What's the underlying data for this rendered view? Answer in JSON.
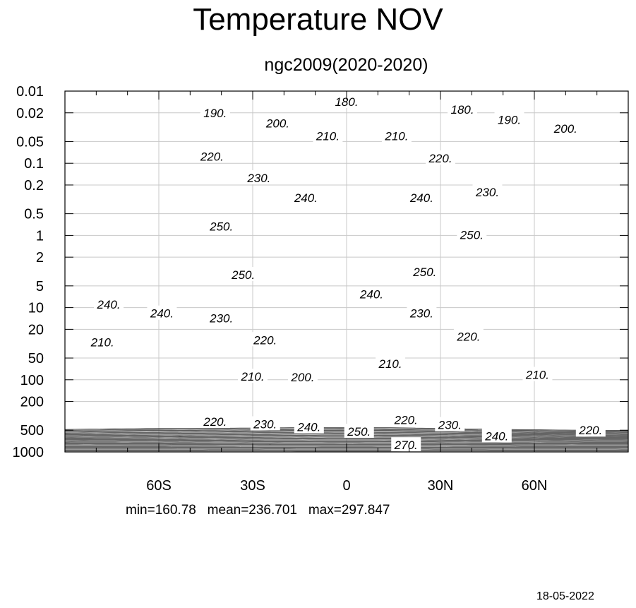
{
  "title": "Temperature NOV",
  "subtitle": "ngc2009(2020-2020)",
  "stats": {
    "min": "min=160.78",
    "mean": "mean=236.701",
    "max": "max=297.847"
  },
  "date": "18-05-2022",
  "chart_data": {
    "type": "contour",
    "title": "Temperature NOV",
    "subtitle": "ngc2009(2020-2020)",
    "x_axis": {
      "range": [
        -90,
        90
      ],
      "ticks": [
        -60,
        -30,
        0,
        30,
        60
      ],
      "tick_labels": [
        "60S",
        "30S",
        "0",
        "30N",
        "60N"
      ]
    },
    "y_axis": {
      "scale": "log",
      "inverted": true,
      "range": [
        0.01,
        1000
      ],
      "ticks": [
        0.01,
        0.02,
        0.05,
        0.1,
        0.2,
        0.5,
        1,
        2,
        5,
        10,
        20,
        50,
        100,
        200,
        500,
        1000
      ],
      "tick_labels": [
        "0.01",
        "0.02",
        "0.05",
        "0.1",
        "0.2",
        "0.5",
        "1",
        "2",
        "5",
        "10",
        "20",
        "50",
        "100",
        "200",
        "500",
        "1000"
      ]
    },
    "grid": true,
    "contour_interval": 5,
    "contour_labels": [
      {
        "text": "180.",
        "lat": 0,
        "p": 0.014
      },
      {
        "text": "180.",
        "lat": 37,
        "p": 0.018
      },
      {
        "text": "190.",
        "lat": -42,
        "p": 0.02
      },
      {
        "text": "190.",
        "lat": 52,
        "p": 0.025
      },
      {
        "text": "200.",
        "lat": -22,
        "p": 0.028
      },
      {
        "text": "200.",
        "lat": 70,
        "p": 0.033
      },
      {
        "text": "210.",
        "lat": -6,
        "p": 0.042
      },
      {
        "text": "210.",
        "lat": 16,
        "p": 0.042
      },
      {
        "text": "220.",
        "lat": -43,
        "p": 0.08
      },
      {
        "text": "220.",
        "lat": 30,
        "p": 0.085
      },
      {
        "text": "230.",
        "lat": -28,
        "p": 0.16
      },
      {
        "text": "230.",
        "lat": 45,
        "p": 0.25
      },
      {
        "text": "240.",
        "lat": -13,
        "p": 0.3
      },
      {
        "text": "240.",
        "lat": 24,
        "p": 0.3
      },
      {
        "text": "250.",
        "lat": -40,
        "p": 0.75
      },
      {
        "text": "250.",
        "lat": 40,
        "p": 0.98
      },
      {
        "text": "250.",
        "lat": -33,
        "p": 3.5
      },
      {
        "text": "250.",
        "lat": 25,
        "p": 3.2
      },
      {
        "text": "240.",
        "lat": -76,
        "p": 9
      },
      {
        "text": "240.",
        "lat": -59,
        "p": 12
      },
      {
        "text": "240.",
        "lat": 8,
        "p": 6.5
      },
      {
        "text": "230.",
        "lat": -40,
        "p": 14
      },
      {
        "text": "230.",
        "lat": 24,
        "p": 12
      },
      {
        "text": "220.",
        "lat": -26,
        "p": 28
      },
      {
        "text": "220.",
        "lat": 39,
        "p": 25
      },
      {
        "text": "210.",
        "lat": -78,
        "p": 30
      },
      {
        "text": "210.",
        "lat": 14,
        "p": 60
      },
      {
        "text": "210.",
        "lat": -30,
        "p": 90
      },
      {
        "text": "210.",
        "lat": 61,
        "p": 85
      },
      {
        "text": "200.",
        "lat": -14,
        "p": 92
      },
      {
        "text": "220.",
        "lat": -42,
        "p": 380
      },
      {
        "text": "230.",
        "lat": -26,
        "p": 410
      },
      {
        "text": "240.",
        "lat": -12,
        "p": 450
      },
      {
        "text": "250.",
        "lat": 4,
        "p": 520
      },
      {
        "text": "220.",
        "lat": 19,
        "p": 360
      },
      {
        "text": "230.",
        "lat": 33,
        "p": 420
      },
      {
        "text": "240.",
        "lat": 48,
        "p": 600
      },
      {
        "text": "220.",
        "lat": 78,
        "p": 500
      },
      {
        "text": "270.",
        "lat": 19,
        "p": 800
      }
    ],
    "statistics": {
      "min": 160.78,
      "mean": 236.701,
      "max": 297.847
    }
  }
}
